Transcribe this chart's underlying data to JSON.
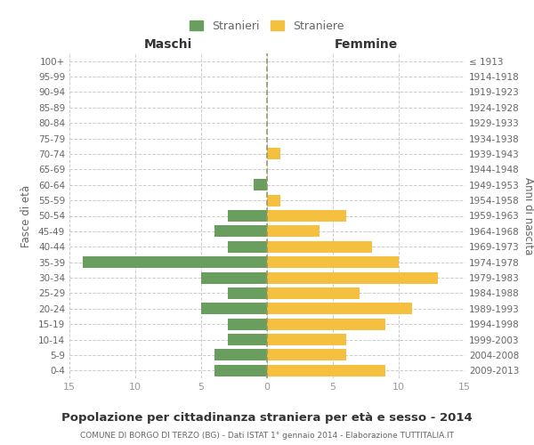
{
  "age_groups": [
    "0-4",
    "5-9",
    "10-14",
    "15-19",
    "20-24",
    "25-29",
    "30-34",
    "35-39",
    "40-44",
    "45-49",
    "50-54",
    "55-59",
    "60-64",
    "65-69",
    "70-74",
    "75-79",
    "80-84",
    "85-89",
    "90-94",
    "95-99",
    "100+"
  ],
  "birth_years": [
    "2009-2013",
    "2004-2008",
    "1999-2003",
    "1994-1998",
    "1989-1993",
    "1984-1988",
    "1979-1983",
    "1974-1978",
    "1969-1973",
    "1964-1968",
    "1959-1963",
    "1954-1958",
    "1949-1953",
    "1944-1948",
    "1939-1943",
    "1934-1938",
    "1929-1933",
    "1924-1928",
    "1919-1923",
    "1914-1918",
    "≤ 1913"
  ],
  "males": [
    4,
    4,
    3,
    3,
    5,
    3,
    5,
    14,
    3,
    4,
    3,
    0,
    1,
    0,
    0,
    0,
    0,
    0,
    0,
    0,
    0
  ],
  "females": [
    9,
    6,
    6,
    9,
    11,
    7,
    13,
    10,
    8,
    4,
    6,
    1,
    0,
    0,
    1,
    0,
    0,
    0,
    0,
    0,
    0
  ],
  "male_color": "#6a9e5e",
  "female_color": "#f5c040",
  "bar_height": 0.75,
  "xlim": 15,
  "title": "Popolazione per cittadinanza straniera per età e sesso - 2014",
  "subtitle": "COMUNE DI BORGO DI TERZO (BG) - Dati ISTAT 1° gennaio 2014 - Elaborazione TUTTITALIA.IT",
  "ylabel_left": "Fasce di età",
  "ylabel_right": "Anni di nascita",
  "xlabel_left": "Maschi",
  "xlabel_right": "Femmine",
  "legend_stranieri": "Stranieri",
  "legend_straniere": "Straniere",
  "bg_color": "#ffffff",
  "grid_color": "#cccccc",
  "tick_color": "#999999",
  "label_color": "#666666",
  "title_color": "#333333",
  "subtitle_color": "#666666",
  "center_line_color": "#999966"
}
